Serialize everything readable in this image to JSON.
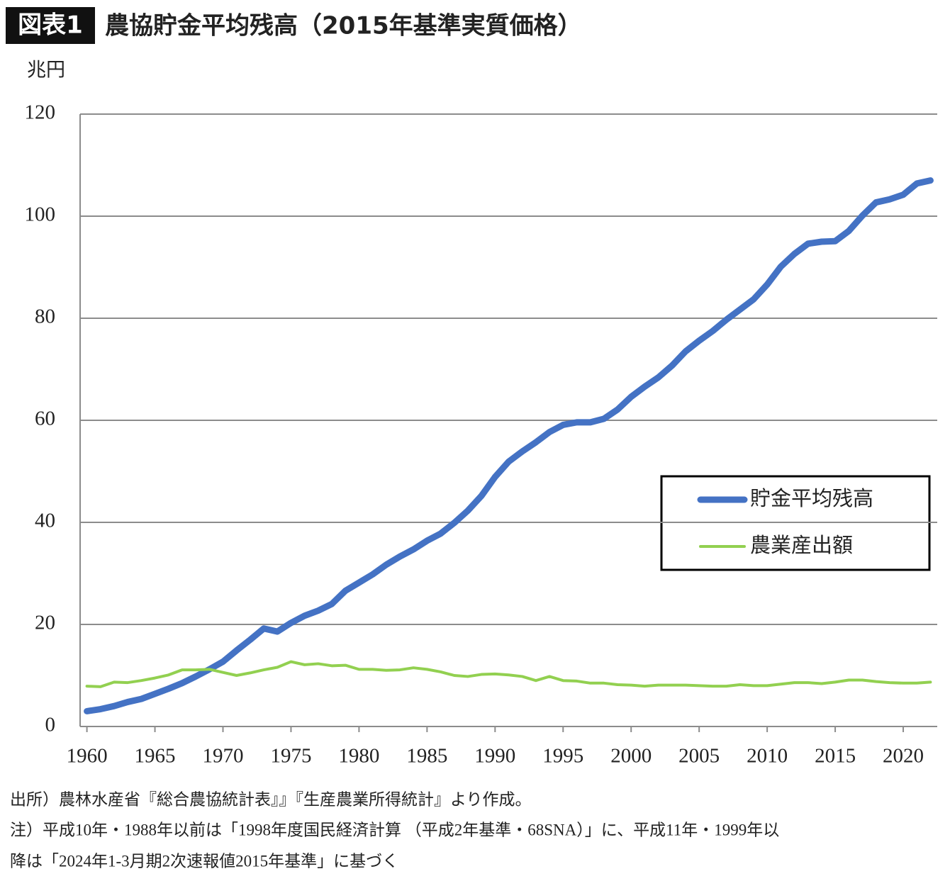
{
  "chart_data": {
    "type": "line",
    "figure_label": "図表1",
    "title": "農協貯金平均残高（2015年基準実質価格）",
    "y_label": "兆円",
    "x": [
      1960,
      1961,
      1962,
      1963,
      1964,
      1965,
      1966,
      1967,
      1968,
      1969,
      1970,
      1971,
      1972,
      1973,
      1974,
      1975,
      1976,
      1977,
      1978,
      1979,
      1980,
      1981,
      1982,
      1983,
      1984,
      1985,
      1986,
      1987,
      1988,
      1989,
      1990,
      1991,
      1992,
      1993,
      1994,
      1995,
      1996,
      1997,
      1998,
      1999,
      2000,
      2001,
      2002,
      2003,
      2004,
      2005,
      2006,
      2007,
      2008,
      2009,
      2010,
      2011,
      2012,
      2013,
      2014,
      2015,
      2016,
      2017,
      2018,
      2019,
      2020,
      2021,
      2022
    ],
    "series": [
      {
        "name": "貯金平均残高",
        "color": "#4472c4",
        "width": 9,
        "values": [
          3.0,
          3.4,
          4.0,
          4.8,
          5.4,
          6.4,
          7.4,
          8.5,
          9.8,
          11.2,
          12.7,
          14.9,
          17.0,
          19.2,
          18.6,
          20.3,
          21.7,
          22.7,
          24.0,
          26.6,
          28.2,
          29.8,
          31.7,
          33.3,
          34.7,
          36.4,
          37.8,
          39.9,
          42.3,
          45.2,
          48.9,
          51.9,
          53.9,
          55.7,
          57.7,
          59.1,
          59.6,
          59.6,
          60.3,
          62.1,
          64.6,
          66.6,
          68.4,
          70.7,
          73.5,
          75.6,
          77.5,
          79.7,
          81.7,
          83.7,
          86.6,
          90.1,
          92.6,
          94.6,
          95.0,
          95.1,
          97.1,
          100.1,
          102.7,
          103.3,
          104.2,
          106.4,
          107.0
        ]
      },
      {
        "name": "農業産出額",
        "color": "#92d050",
        "width": 4,
        "values": [
          7.9,
          7.8,
          8.7,
          8.6,
          9.0,
          9.5,
          10.1,
          11.1,
          11.1,
          11.2,
          10.6,
          10.0,
          10.5,
          11.1,
          11.6,
          12.7,
          12.1,
          12.3,
          11.9,
          12.0,
          11.2,
          11.2,
          11.0,
          11.1,
          11.5,
          11.2,
          10.7,
          10.0,
          9.8,
          10.2,
          10.3,
          10.1,
          9.8,
          9.0,
          9.8,
          9.0,
          8.9,
          8.5,
          8.5,
          8.2,
          8.1,
          7.9,
          8.1,
          8.1,
          8.1,
          8.0,
          7.9,
          7.9,
          8.2,
          8.0,
          8.0,
          8.3,
          8.6,
          8.6,
          8.4,
          8.7,
          9.1,
          9.1,
          8.8,
          8.6,
          8.5,
          8.5,
          8.7
        ]
      }
    ],
    "xlim": [
      1959.5,
      2022.5
    ],
    "xticks": [
      1960,
      1965,
      1970,
      1975,
      1980,
      1985,
      1990,
      1995,
      2000,
      2005,
      2010,
      2015,
      2020
    ],
    "ylim": [
      0,
      120
    ],
    "yticks": [
      0,
      20,
      40,
      60,
      80,
      100,
      120
    ],
    "grid": true,
    "legend": "right",
    "source": "出所）農林水産省『総合農協統計表』』『生産農業所得統計』より作成。",
    "notes": [
      "注）平成10年・1988年以前は「1998年度国民経済計算 （平成2年基準・68SNA）」に、平成11年・1999年以",
      "降は「2024年1-3月期2次速報値2015年基準」に基づく"
    ]
  }
}
